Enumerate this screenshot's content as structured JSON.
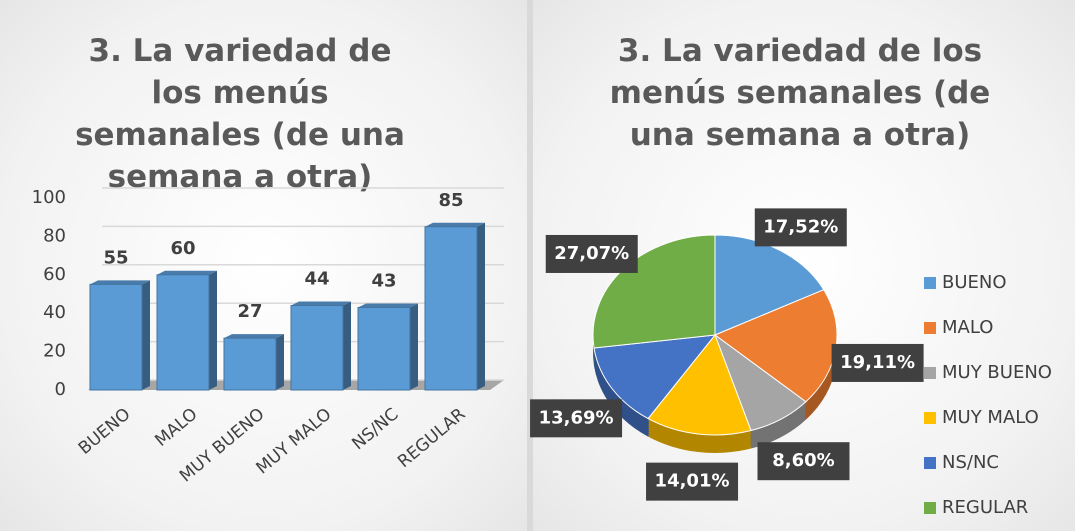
{
  "chart_data": [
    {
      "type": "bar",
      "title": "3. La variedad de los menús semanales (de una semana a otra)",
      "categories": [
        "BUENO",
        "MALO",
        "MUY BUENO",
        "MUY MALO",
        "NS/NC",
        "REGULAR"
      ],
      "values": [
        55,
        60,
        27,
        44,
        43,
        85
      ],
      "color": "#5b9bd5",
      "ylim": [
        0,
        100
      ],
      "yticks": [
        0,
        20,
        40,
        60,
        80,
        100
      ],
      "grid": true
    },
    {
      "type": "pie",
      "title": "3. La variedad de los menús semanales (de una semana a otra)",
      "categories": [
        "BUENO",
        "MALO",
        "MUY BUENO",
        "MUY MALO",
        "NS/NC",
        "REGULAR"
      ],
      "values": [
        17.52,
        19.11,
        8.6,
        14.01,
        13.69,
        27.07
      ],
      "value_labels": [
        "17,52%",
        "19,11%",
        "8,60%",
        "14,01%",
        "13,69%",
        "27,07%"
      ],
      "colors": [
        "#5b9bd5",
        "#ed7d31",
        "#a5a5a5",
        "#ffc000",
        "#4472c4",
        "#70ad47"
      ],
      "legend": "right"
    }
  ]
}
